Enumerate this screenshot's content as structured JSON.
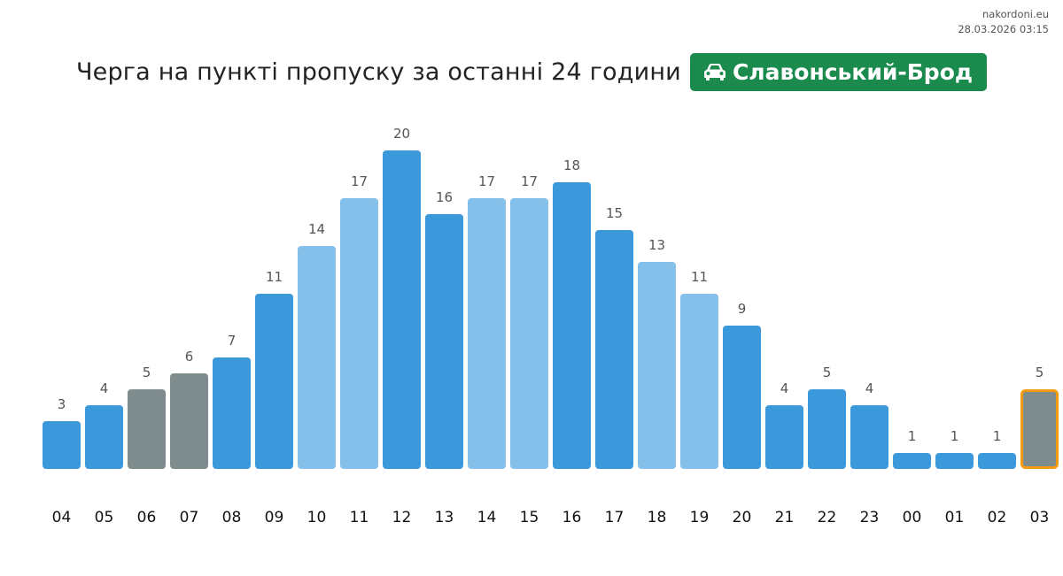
{
  "meta": {
    "site": "nakordoni.eu",
    "timestamp": "28.03.2026 03:15"
  },
  "header": {
    "title": "Черга на пункті пропуску за останні 24 години",
    "badge_label": "Славонський-Брод",
    "badge_icon": "car-icon",
    "badge_color": "#1b8a4d"
  },
  "chart_data": {
    "type": "bar",
    "categories": [
      "04",
      "05",
      "06",
      "07",
      "08",
      "09",
      "10",
      "11",
      "12",
      "13",
      "14",
      "15",
      "16",
      "17",
      "18",
      "19",
      "20",
      "21",
      "22",
      "23",
      "00",
      "01",
      "02",
      "03"
    ],
    "values": [
      3,
      4,
      5,
      6,
      7,
      11,
      14,
      17,
      20,
      16,
      17,
      17,
      18,
      15,
      13,
      11,
      9,
      4,
      5,
      4,
      1,
      1,
      1,
      5
    ],
    "bar_styles": [
      "dark",
      "dark",
      "gray",
      "gray",
      "dark",
      "dark",
      "light",
      "light",
      "dark",
      "dark",
      "light",
      "light",
      "dark",
      "dark",
      "light",
      "light",
      "dark",
      "dark",
      "dark",
      "dark",
      "dark",
      "dark",
      "dark",
      "gray"
    ],
    "highlighted_index": 23,
    "colors": {
      "dark": "#3a98db",
      "light": "#85c0ea",
      "gray": "#7f8c8d",
      "highlight_border": "#f39c12"
    },
    "ylim": [
      0,
      20
    ],
    "grid": false
  }
}
